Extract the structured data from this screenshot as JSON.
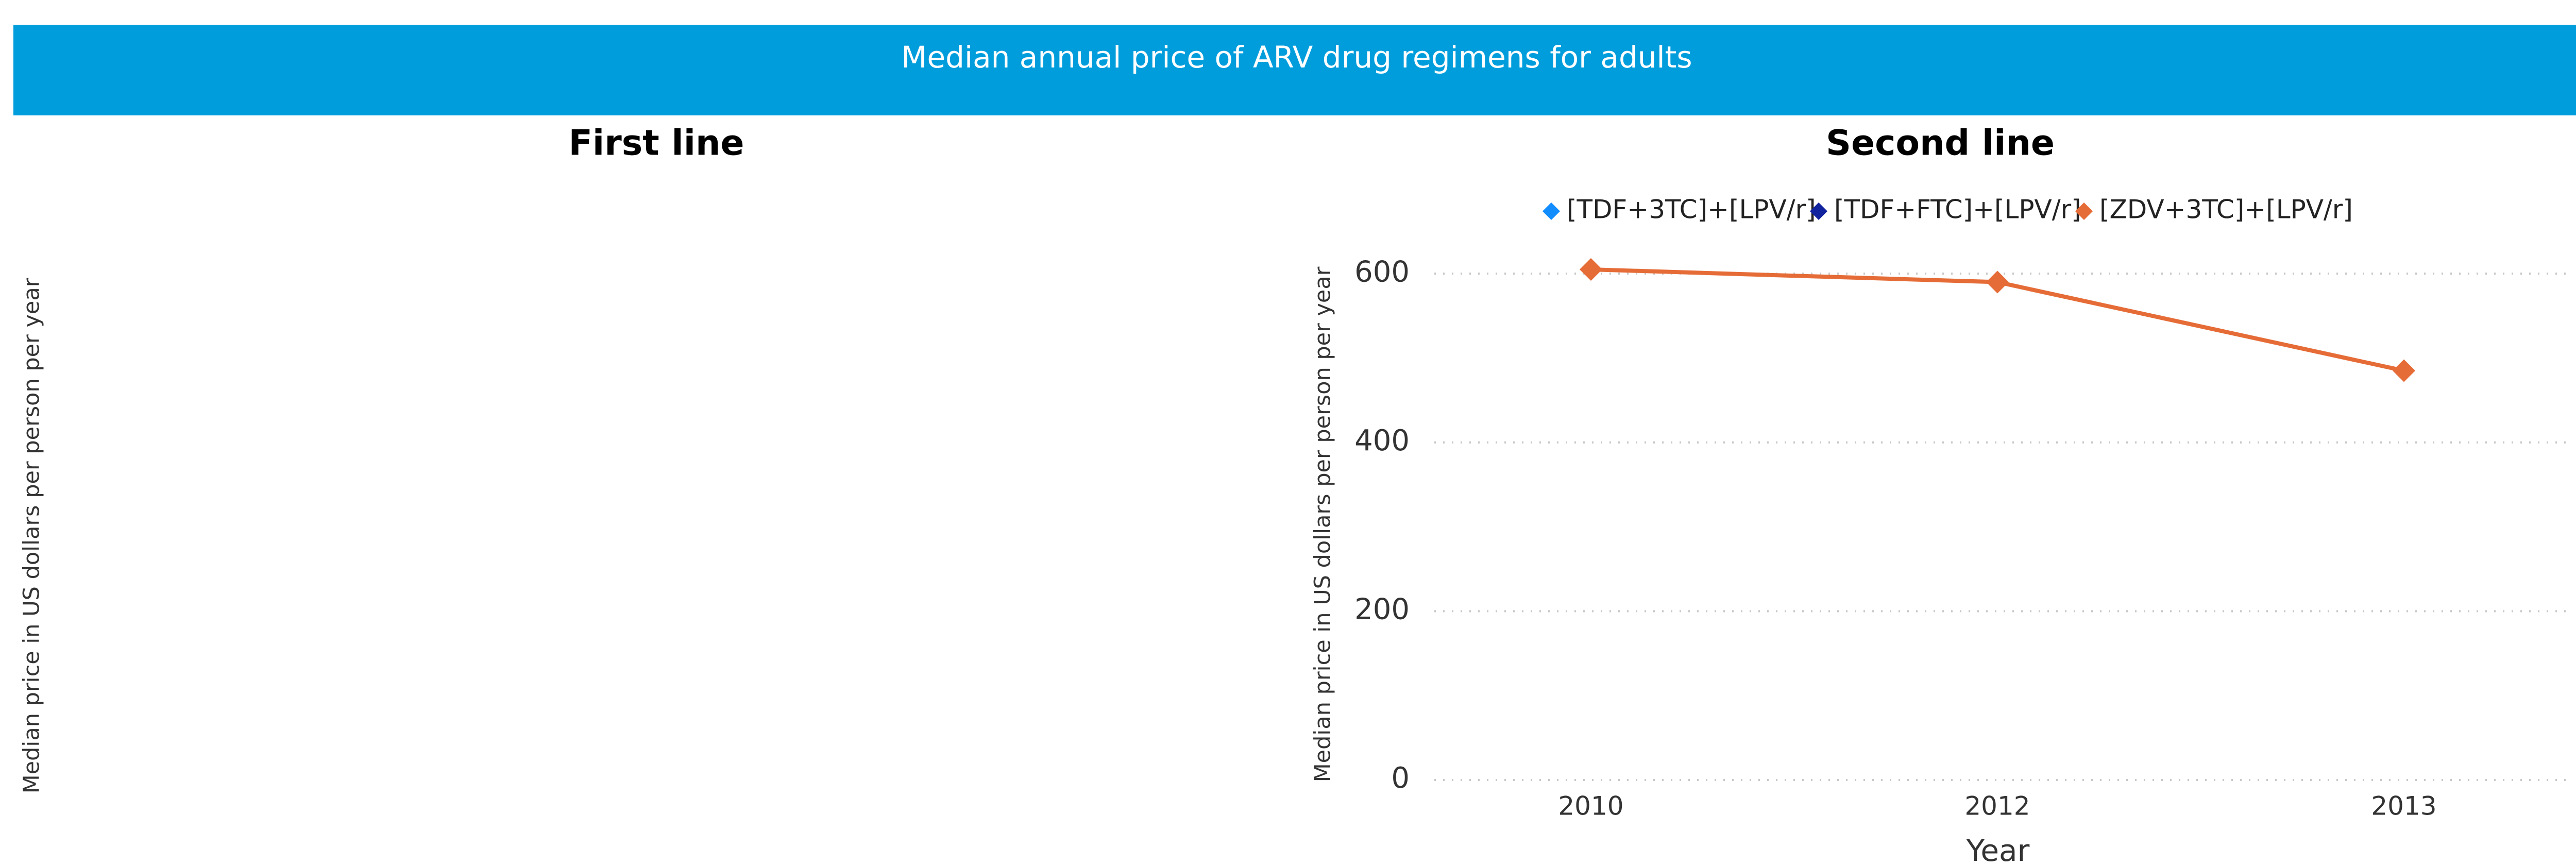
{
  "header": {
    "title": "Median annual price of ARV drug regimens for adults"
  },
  "chart_data": [
    {
      "type": "line",
      "title": "First line",
      "y_label": "Median price in US dollars per person per year"
    },
    {
      "type": "line",
      "title": "Second line",
      "y_label": "Median price in US dollars per person per year",
      "x_label": "Year",
      "categories": [
        "2010",
        "2012",
        "2013"
      ],
      "series": [
        {
          "name": "[TDF+3TC]+[LPV/r]",
          "color": "#118DFF",
          "values": [
            null,
            null,
            null
          ]
        },
        {
          "name": "[TDF+FTC]+[LPV/r]",
          "color": "#12239E",
          "values": [
            null,
            null,
            null
          ]
        },
        {
          "name": "[ZDV+3TC]+[LPV/r]",
          "color": "#E66C37",
          "values": [
            605,
            590,
            485
          ]
        }
      ],
      "ylim": [
        0,
        630
      ],
      "yticks": [
        0,
        200,
        400,
        600
      ],
      "grid": true,
      "legend": "top"
    }
  ]
}
